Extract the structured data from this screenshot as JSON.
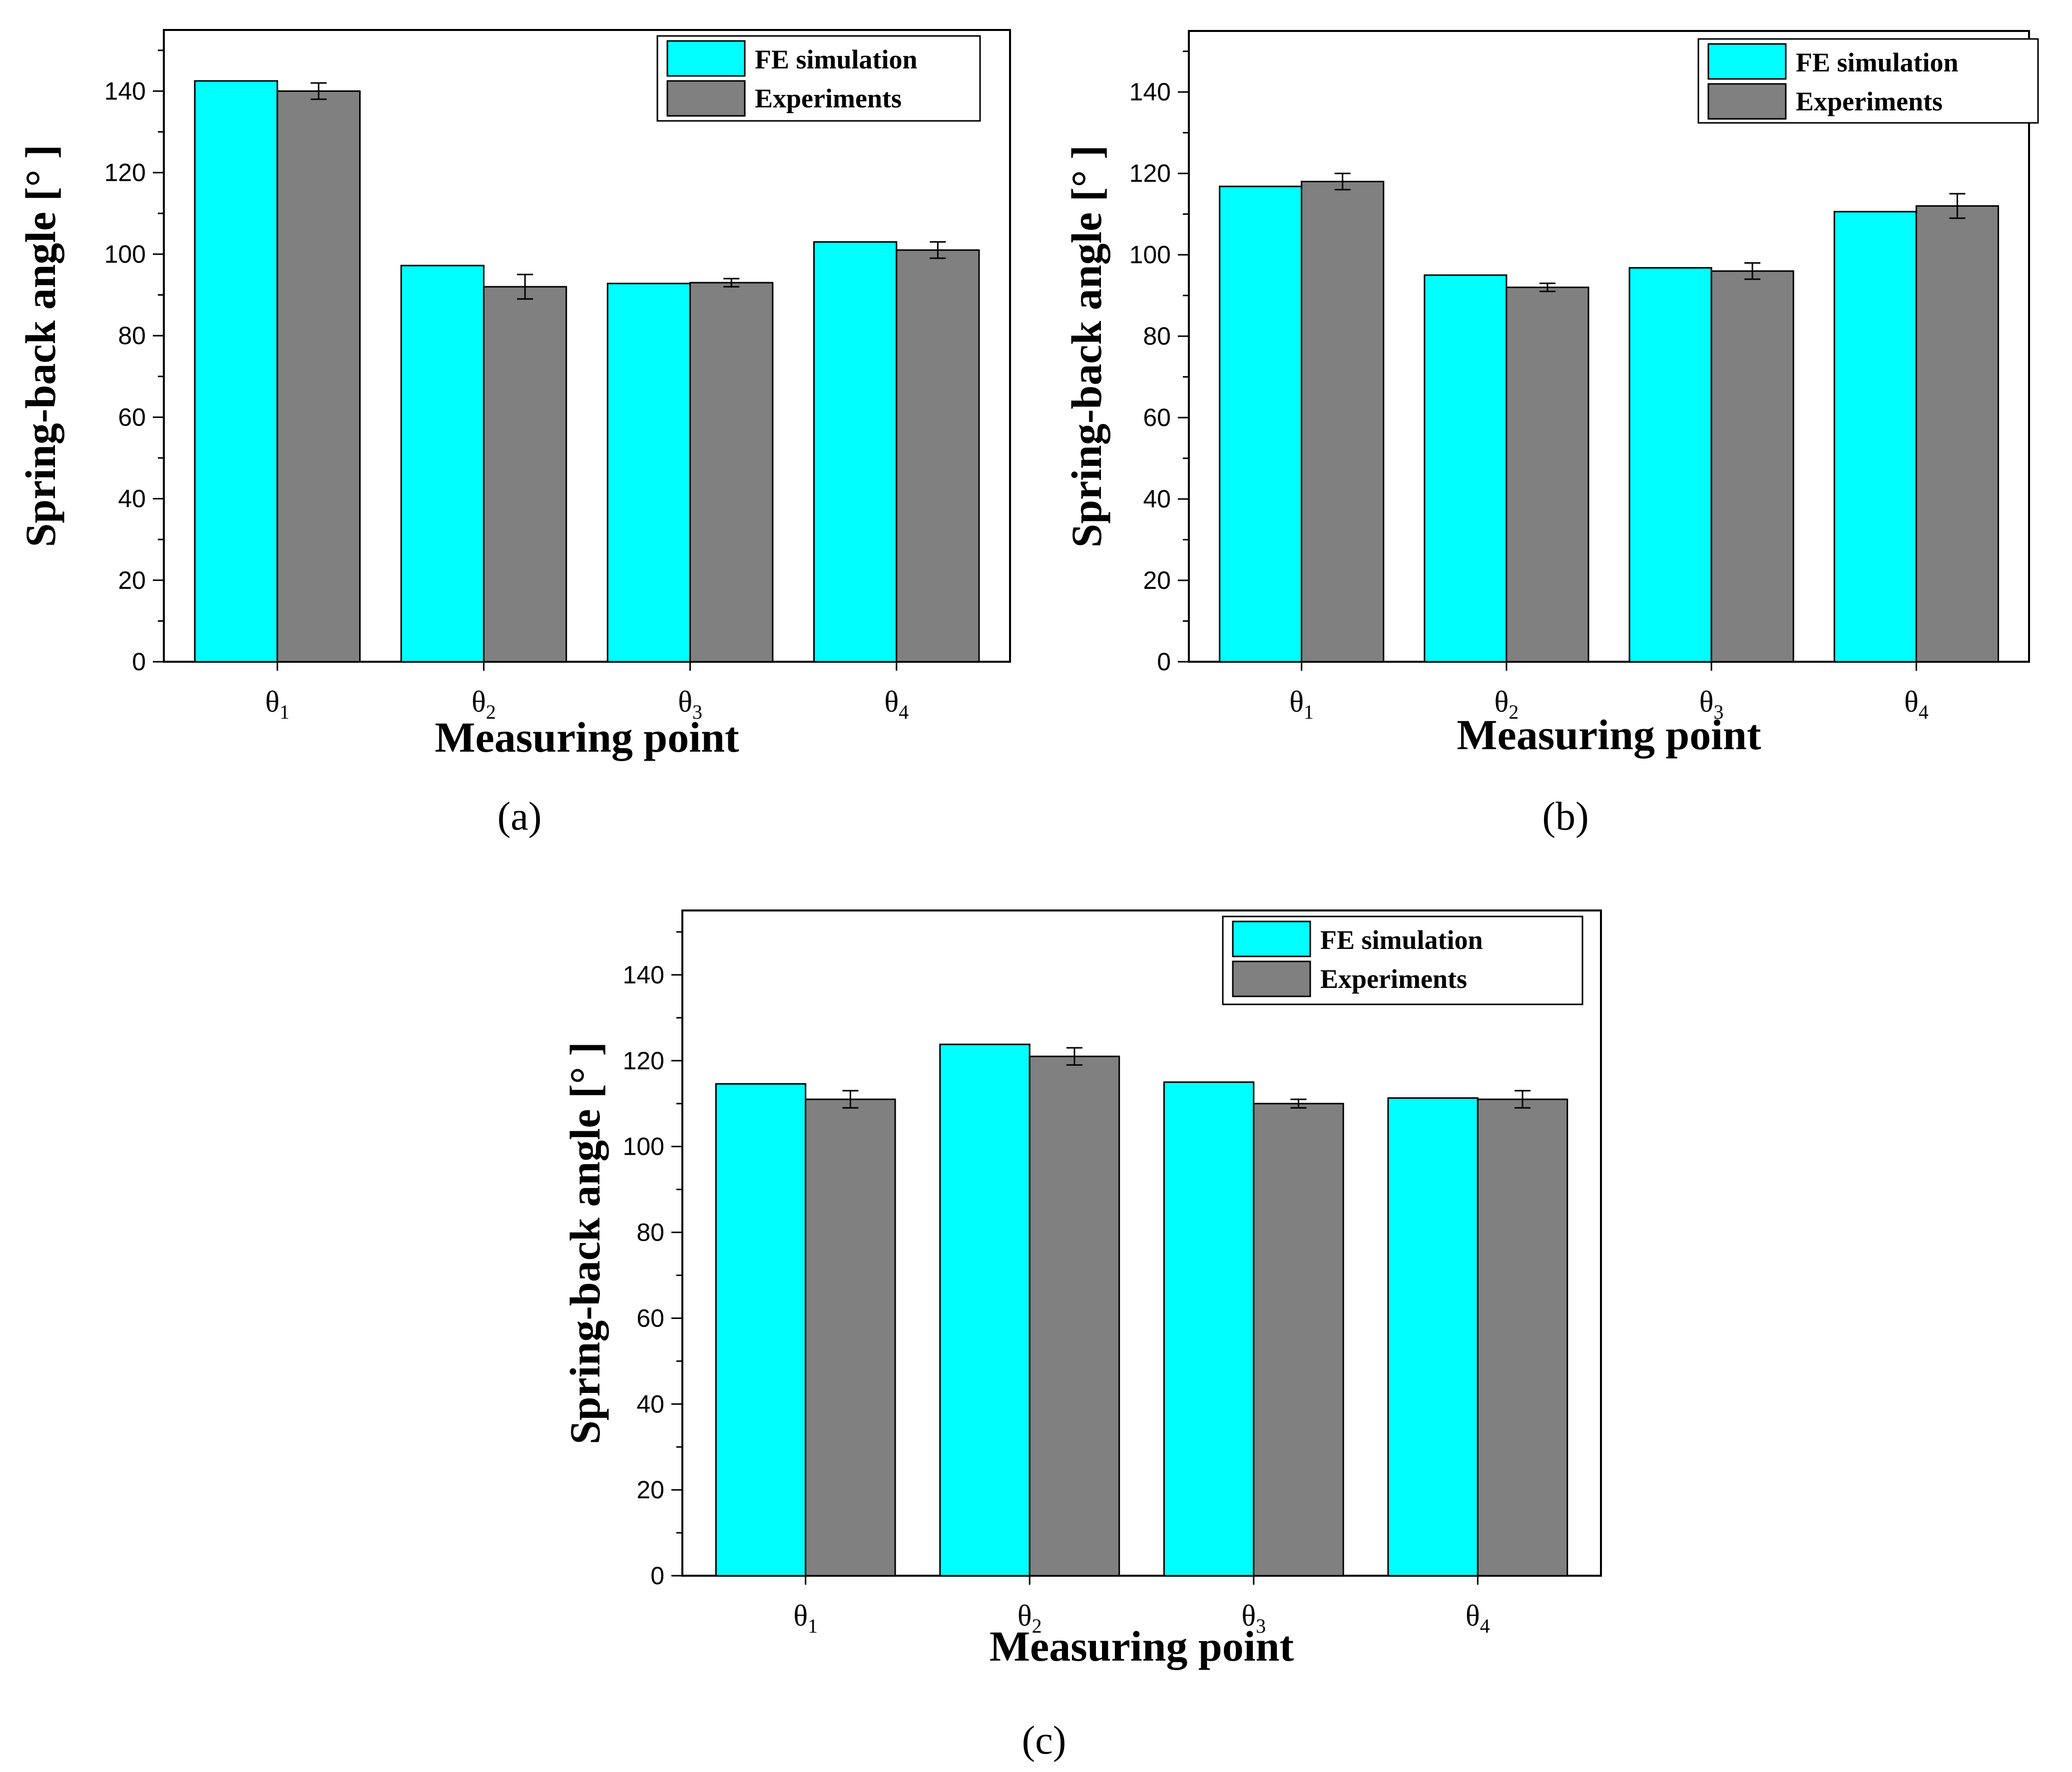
{
  "colors": {
    "fe": "#00ffff",
    "exp": "#808080",
    "axis": "#000000",
    "background": "#ffffff"
  },
  "chart_data": [
    {
      "type": "bar",
      "panel_label": "(a)",
      "categories": [
        "θ1",
        "θ2",
        "θ3",
        "θ4"
      ],
      "category_base": "θ",
      "category_subscripts": [
        "1",
        "2",
        "3",
        "4"
      ],
      "xlabel": "Measuring point",
      "ylabel": "Spring-back angle [° ]",
      "ylim": [
        0,
        155
      ],
      "yticks": [
        0,
        20,
        40,
        60,
        80,
        100,
        120,
        140
      ],
      "legend_position": "top-right",
      "series": [
        {
          "name": "FE simulation",
          "values": [
            142.5,
            97.2,
            92.8,
            103.0
          ]
        },
        {
          "name": "Experiments",
          "values": [
            140.0,
            92.0,
            93.0,
            101.0
          ],
          "errors": [
            2.0,
            3.0,
            1.0,
            2.0
          ]
        }
      ]
    },
    {
      "type": "bar",
      "panel_label": "(b)",
      "categories": [
        "θ1",
        "θ2",
        "θ3",
        "θ4"
      ],
      "category_base": "θ",
      "category_subscripts": [
        "1",
        "2",
        "3",
        "4"
      ],
      "xlabel": "Measuring point",
      "ylabel": "Spring-back angle [° ]",
      "ylim": [
        0,
        155
      ],
      "yticks": [
        0,
        20,
        40,
        60,
        80,
        100,
        120,
        140
      ],
      "legend_position": "top-right",
      "series": [
        {
          "name": "FE simulation",
          "values": [
            116.8,
            95.0,
            96.8,
            110.6
          ]
        },
        {
          "name": "Experiments",
          "values": [
            118.0,
            92.0,
            96.0,
            112.0
          ],
          "errors": [
            2.0,
            1.0,
            2.0,
            3.0
          ]
        }
      ]
    },
    {
      "type": "bar",
      "panel_label": "(c)",
      "categories": [
        "θ1",
        "θ2",
        "θ3",
        "θ4"
      ],
      "category_base": "θ",
      "category_subscripts": [
        "1",
        "2",
        "3",
        "4"
      ],
      "xlabel": "Measuring point",
      "ylabel": "Spring-back angle [° ]",
      "ylim": [
        0,
        155
      ],
      "yticks": [
        0,
        20,
        40,
        60,
        80,
        100,
        120,
        140
      ],
      "legend_position": "top-right",
      "series": [
        {
          "name": "FE simulation",
          "values": [
            114.6,
            123.8,
            115.0,
            111.3
          ]
        },
        {
          "name": "Experiments",
          "values": [
            111.0,
            121.0,
            110.0,
            111.0
          ],
          "errors": [
            2.0,
            2.0,
            1.0,
            2.0
          ]
        }
      ]
    }
  ]
}
